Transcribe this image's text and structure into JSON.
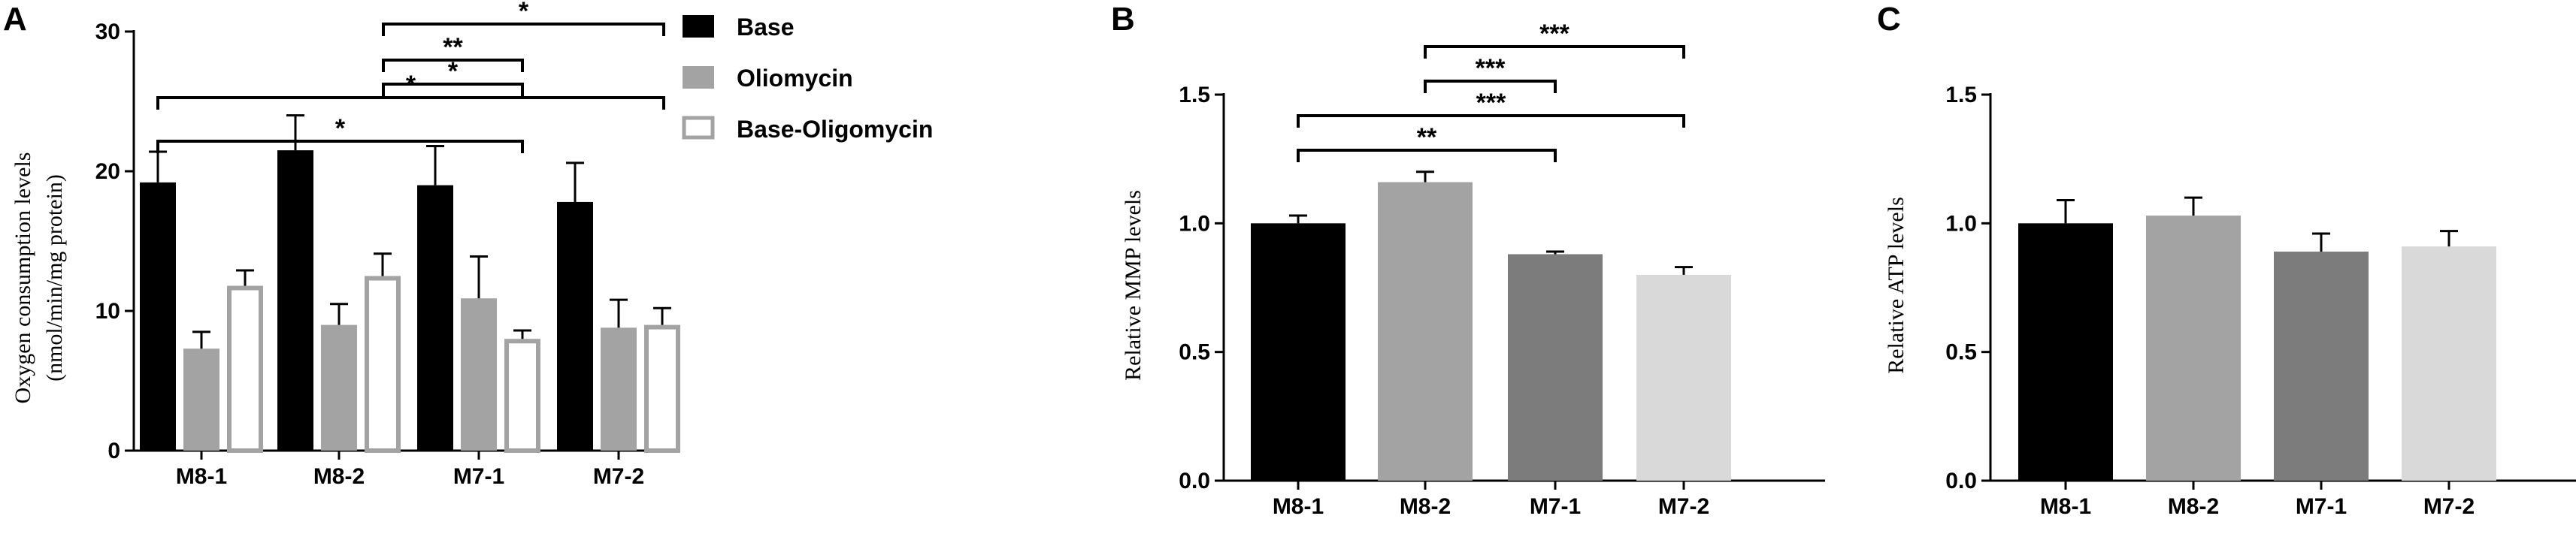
{
  "chart_data": [
    {
      "panel": "A",
      "type": "bar",
      "categories": [
        "M8-1",
        "M8-2",
        "M7-1",
        "M7-2"
      ],
      "ylabel": "Oxygen consumption levels",
      "ylabel_unit": "(nmol/min/mg protein)",
      "ylim": [
        0,
        30
      ],
      "yticks": [
        "0",
        "10",
        "20",
        "30"
      ],
      "series": [
        {
          "name": "Base",
          "color": "#000000",
          "style": "filled",
          "values": [
            19.2,
            21.5,
            19.0,
            17.8
          ],
          "errors": [
            2.2,
            2.5,
            2.8,
            2.8
          ]
        },
        {
          "name": "Oliomycin",
          "color": "#a3a3a3",
          "style": "filled",
          "values": [
            7.3,
            9.0,
            10.9,
            8.8
          ],
          "errors": [
            1.2,
            1.5,
            3.0,
            2.0
          ]
        },
        {
          "name": "Base-Oligomycin",
          "color": "#a3a3a3",
          "style": "outline",
          "values": [
            11.8,
            12.5,
            8.0,
            9.0
          ],
          "errors": [
            1.1,
            1.6,
            0.6,
            1.2
          ]
        }
      ],
      "significance": [
        {
          "from": 1,
          "to": 3,
          "label": "*"
        },
        {
          "from": 1,
          "to": 2,
          "label": "**"
        },
        {
          "from": 1,
          "to": 2,
          "label": "*"
        },
        {
          "from": 0,
          "to": 3,
          "label": "*"
        },
        {
          "from": 0,
          "to": 2,
          "label": "*"
        }
      ]
    },
    {
      "panel": "B",
      "type": "bar",
      "categories": [
        "M8-1",
        "M8-2",
        "M7-1",
        "M7-2"
      ],
      "ylabel": "Relative MMP levels",
      "ylim": [
        0,
        1.5
      ],
      "yticks": [
        "0.0",
        "0.5",
        "1.0",
        "1.5"
      ],
      "values": [
        1.0,
        1.16,
        0.88,
        0.8
      ],
      "errors": [
        0.03,
        0.04,
        0.01,
        0.03
      ],
      "colors": [
        "#000000",
        "#a3a3a3",
        "#7c7c7c",
        "#d9d9d9"
      ],
      "significance": [
        {
          "from": 1,
          "to": 3,
          "label": "***"
        },
        {
          "from": 1,
          "to": 2,
          "label": "***"
        },
        {
          "from": 0,
          "to": 3,
          "label": "***"
        },
        {
          "from": 0,
          "to": 2,
          "label": "**"
        }
      ]
    },
    {
      "panel": "C",
      "type": "bar",
      "categories": [
        "M8-1",
        "M8-2",
        "M7-1",
        "M7-2"
      ],
      "ylabel": "Relative ATP levels",
      "ylim": [
        0,
        1.5
      ],
      "yticks": [
        "0.0",
        "0.5",
        "1.0",
        "1.5"
      ],
      "values": [
        1.0,
        1.03,
        0.89,
        0.91
      ],
      "errors": [
        0.09,
        0.07,
        0.07,
        0.06
      ],
      "colors": [
        "#000000",
        "#a3a3a3",
        "#7c7c7c",
        "#d9d9d9"
      ],
      "significance": []
    }
  ]
}
